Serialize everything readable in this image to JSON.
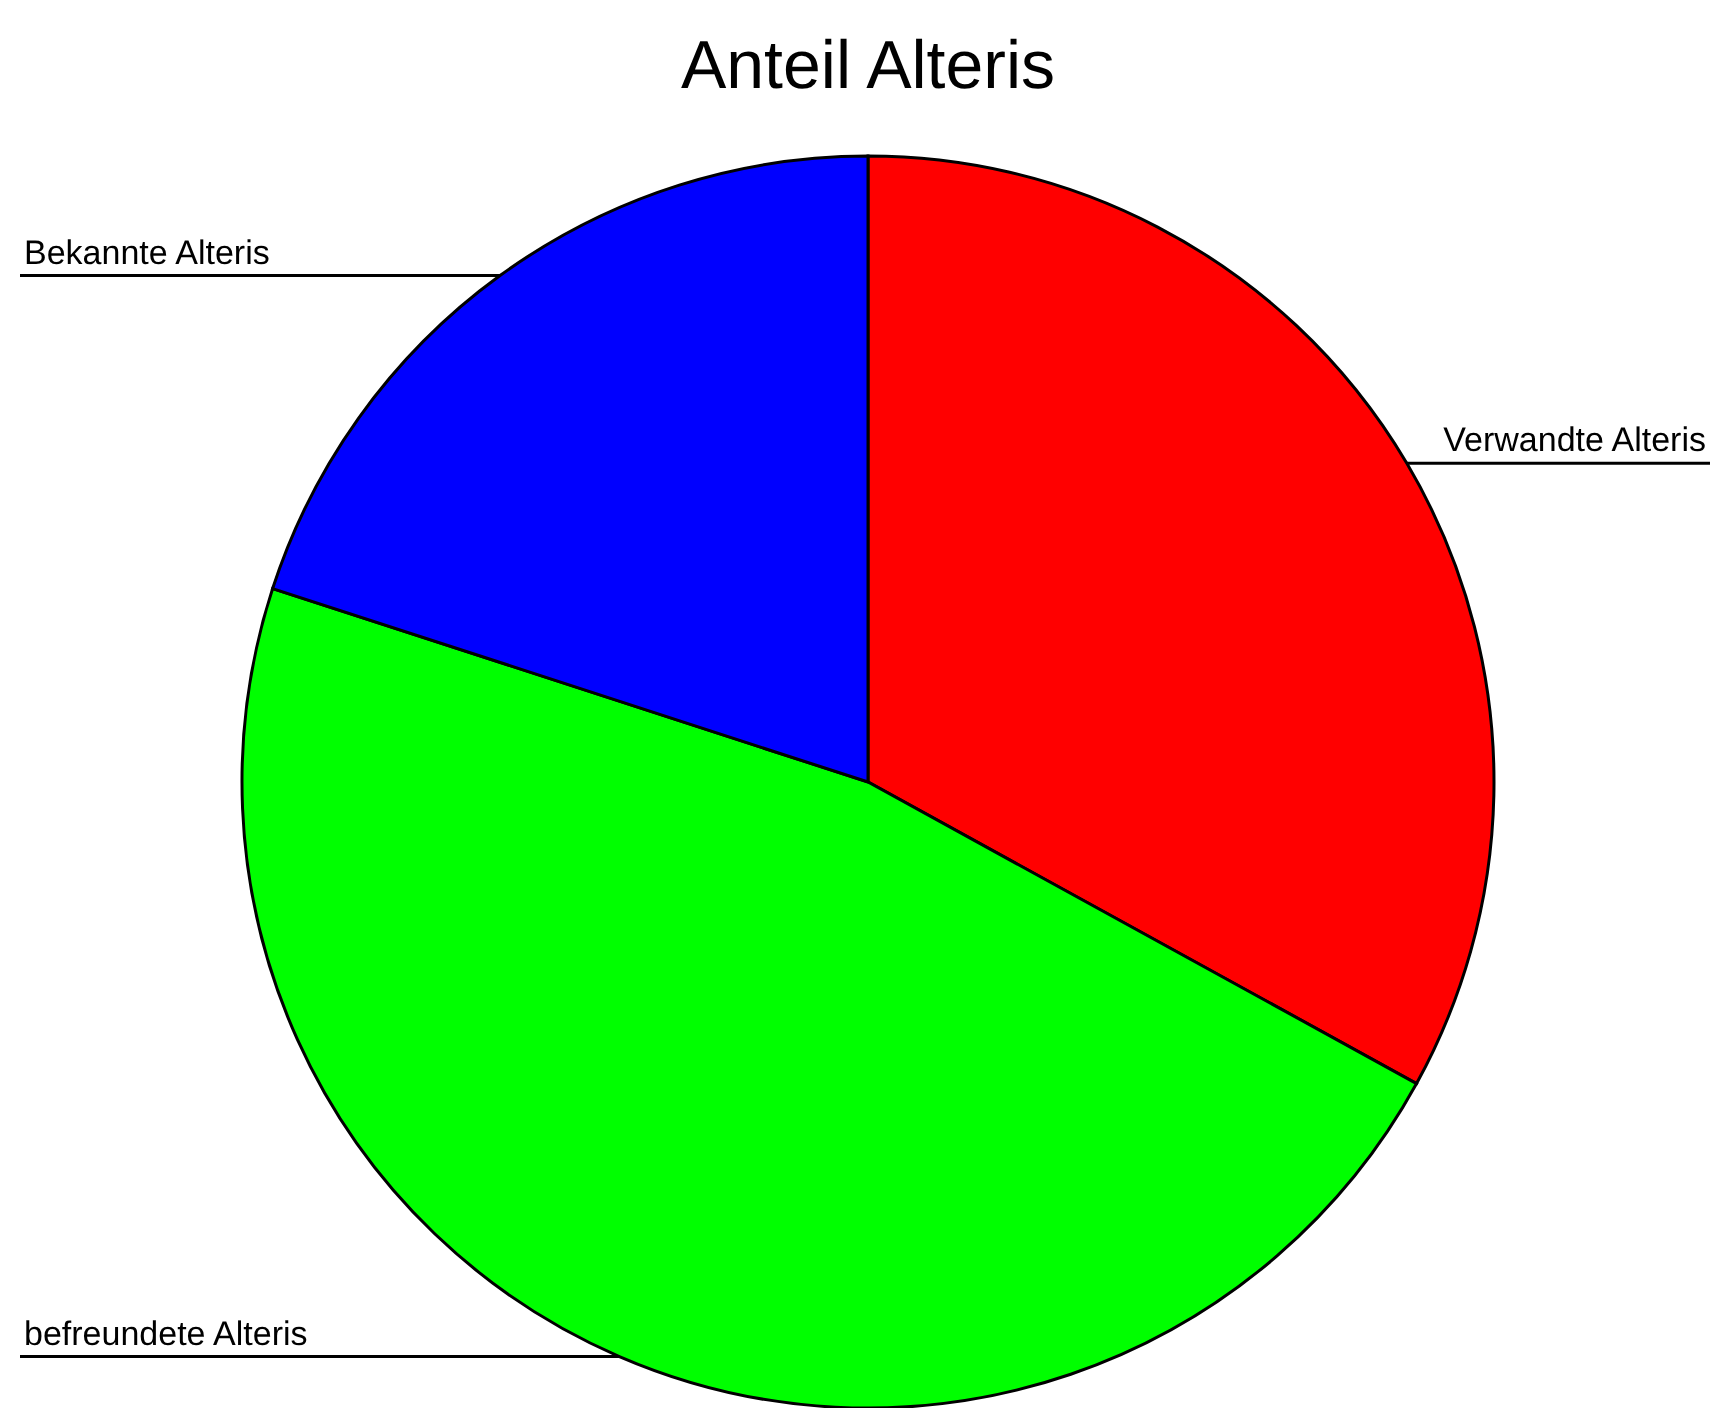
{
  "chart_data": {
    "type": "pie",
    "title": "Anteil Alteris",
    "categories": [
      "Verwandte Alteris",
      "befreundete Alteris",
      "Bekannte Alteris"
    ],
    "values": [
      33,
      47,
      20
    ],
    "colors": [
      "#ff0000",
      "#00ff00",
      "#0000ff"
    ],
    "legend": false
  }
}
